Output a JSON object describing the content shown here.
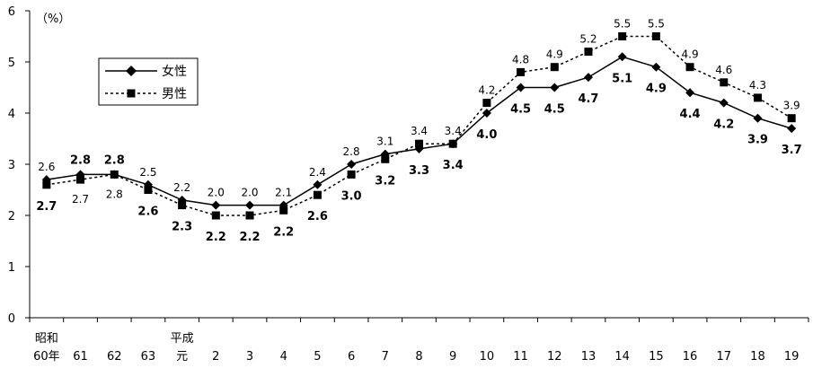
{
  "chart_data": {
    "type": "line",
    "unit_label": "（%）",
    "ylim": [
      0,
      6
    ],
    "y_ticks": [
      "0",
      "1",
      "2",
      "3",
      "4",
      "5",
      "6"
    ],
    "categories": [
      "60年",
      "61",
      "62",
      "63",
      "元",
      "2",
      "3",
      "4",
      "5",
      "6",
      "7",
      "8",
      "9",
      "10",
      "11",
      "12",
      "13",
      "14",
      "15",
      "16",
      "17",
      "18",
      "19"
    ],
    "era_labels": [
      {
        "index": 0,
        "text": "昭和"
      },
      {
        "index": 4,
        "text": "平成"
      }
    ],
    "series": [
      {
        "name": "女性",
        "line_style": "solid",
        "marker": "diamond",
        "values": [
          2.7,
          2.8,
          2.8,
          2.6,
          2.3,
          2.2,
          2.2,
          2.2,
          2.6,
          3.0,
          3.2,
          3.3,
          3.4,
          4.0,
          4.5,
          4.5,
          4.7,
          5.1,
          4.9,
          4.4,
          4.2,
          3.9,
          3.7
        ]
      },
      {
        "name": "男性",
        "line_style": "dotted",
        "marker": "square",
        "values": [
          2.6,
          2.7,
          2.8,
          2.5,
          2.2,
          2.0,
          2.0,
          2.1,
          2.4,
          2.8,
          3.1,
          3.4,
          3.4,
          4.2,
          4.8,
          4.9,
          5.2,
          5.5,
          5.5,
          4.9,
          4.6,
          4.3,
          3.9
        ]
      }
    ],
    "legend_position": "top-left",
    "grid": false
  }
}
